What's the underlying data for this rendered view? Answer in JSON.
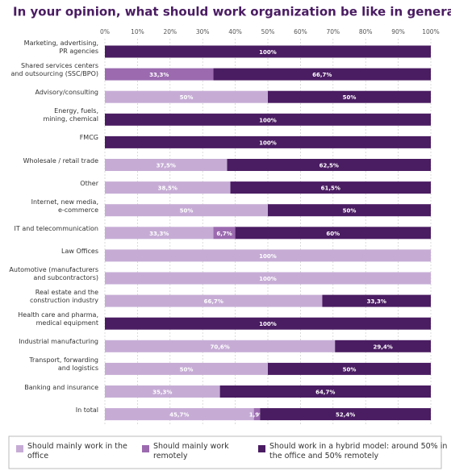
{
  "chart_data": {
    "type": "stacked-barh",
    "title": "In your opinion, what should work organization be like in general?",
    "categories": [
      "Marketing, advertising,\nPR agencies",
      "Shared services centers\nand outsourcing (SSC/BPO)",
      "Advisory/consulting",
      "Energy, fuels,\nmining, chemical",
      "FMCG",
      "Wholesale / retail trade",
      "Other",
      "Internet, new media,\ne-commerce",
      "IT and telecommunication",
      "Law Offices",
      "Automotive (manufacturers\nand subcontractors)",
      "Real estate and the\nconstruction industry",
      "Health care and pharma,\nmedical equipment",
      "Industrial manufacturing",
      "Transport, forwarding\nand logistics",
      "Banking and insurance",
      "In total"
    ],
    "series": [
      {
        "name": "Should mainly work in the office",
        "color": "#c6acd5",
        "values": [
          0,
          0,
          50,
          0,
          0,
          37.5,
          38.5,
          50,
          33.3,
          100,
          100,
          66.7,
          0,
          70.6,
          50,
          35.3,
          45.7
        ],
        "value_labels": [
          null,
          null,
          "50%",
          null,
          null,
          "37,5%",
          "38,5%",
          "50%",
          "33,3%",
          "100%",
          "100%",
          "66,7%",
          null,
          "70,6%",
          "50%",
          "35,3%",
          "45,7%"
        ]
      },
      {
        "name": "Should mainly work remotely",
        "color": "#9b6aaf",
        "values": [
          0,
          33.3,
          0,
          0,
          0,
          0,
          0,
          0,
          6.7,
          0,
          0,
          0,
          0,
          0,
          0,
          0,
          1.9
        ],
        "value_labels": [
          null,
          "33,3%",
          null,
          null,
          null,
          null,
          null,
          null,
          "6,7%",
          null,
          null,
          null,
          null,
          null,
          null,
          null,
          "1,9%"
        ]
      },
      {
        "name": "Should work in a hybrid model: around 50% in the office and 50% remotely",
        "color": "#4a1c62",
        "values": [
          100,
          66.7,
          50,
          100,
          100,
          62.5,
          61.5,
          50,
          60,
          0,
          0,
          33.3,
          100,
          29.4,
          50,
          64.7,
          52.4
        ],
        "value_labels": [
          "100%",
          "66,7%",
          "50%",
          "100%",
          "100%",
          "62,5%",
          "61,5%",
          "50%",
          "60%",
          null,
          null,
          "33,3%",
          "100%",
          "29,4%",
          "50%",
          "64,7%",
          "52,4%"
        ]
      }
    ],
    "xlim": [
      0,
      100
    ],
    "xticks": [
      {
        "value": 0,
        "label": "0%"
      },
      {
        "value": 10,
        "label": "10%"
      },
      {
        "value": 20,
        "label": "20%"
      },
      {
        "value": 30,
        "label": "30%"
      },
      {
        "value": 40,
        "label": "40%"
      },
      {
        "value": 50,
        "label": "50%"
      },
      {
        "value": 60,
        "label": "60%"
      },
      {
        "value": 70,
        "label": "70%"
      },
      {
        "value": 80,
        "label": "80%"
      },
      {
        "value": 90,
        "label": "90%"
      },
      {
        "value": 100,
        "label": "100%"
      }
    ],
    "grid": true
  }
}
